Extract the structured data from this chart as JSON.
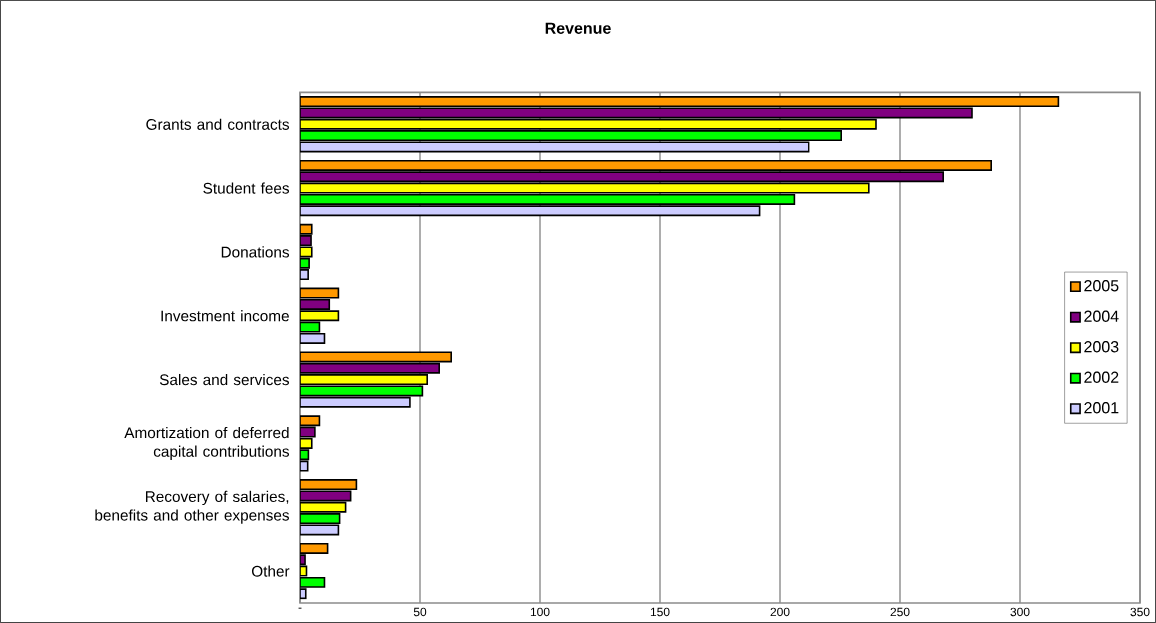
{
  "chart_data": {
    "type": "bar",
    "orientation": "horizontal",
    "title": "Revenue",
    "categories": [
      "Grants and contracts",
      "Student fees",
      "Donations",
      "Investment income",
      "Sales and services",
      "Amortization of deferred capital contributions",
      "Recovery of salaries, benefits and other expenses",
      "Other"
    ],
    "series": [
      {
        "name": "2005",
        "color": "#ff9900",
        "values": [
          316,
          288,
          4.9,
          16,
          63,
          8.1,
          23.5,
          11.5
        ]
      },
      {
        "name": "2004",
        "color": "#800080",
        "values": [
          280,
          268,
          4.6,
          12.2,
          58,
          6.2,
          21.1,
          2.1
        ]
      },
      {
        "name": "2003",
        "color": "#ffff00",
        "values": [
          240,
          237,
          4.9,
          16,
          53,
          4.9,
          19,
          2.7
        ]
      },
      {
        "name": "2002",
        "color": "#00ff00",
        "values": [
          225.5,
          206,
          3.8,
          8.1,
          51,
          3.5,
          16.5,
          10.2
        ]
      },
      {
        "name": "2001",
        "color": "#ccccff",
        "values": [
          212,
          191.5,
          3.4,
          10.2,
          45.8,
          3.2,
          16,
          2.4
        ]
      }
    ],
    "xlim": [
      0,
      350
    ],
    "xticks": [
      {
        "value": 0,
        "label": "-"
      },
      50,
      100,
      150,
      200,
      250,
      300,
      350
    ],
    "grid": "x",
    "legend": "right"
  }
}
